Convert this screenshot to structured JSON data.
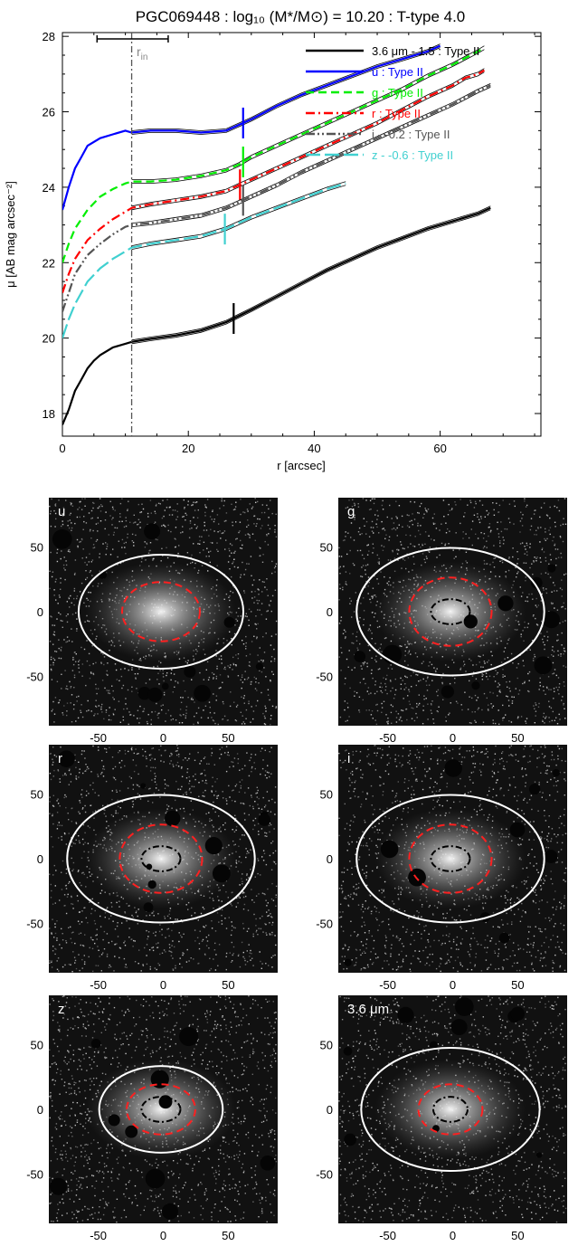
{
  "chart_data": [
    {
      "type": "line",
      "title": "PGC069448 : log₁₀ (M*/M⊙) = 10.20 : T-type 4.0",
      "xlabel": "r [arcsec]",
      "ylabel": "μ [AB mag arcsec⁻²]",
      "xlim": [
        0,
        76
      ],
      "ylim": [
        28.1,
        17.4
      ],
      "y_inverted": true,
      "xticks": [
        "0",
        "20",
        "40",
        "60"
      ],
      "yticks": [
        "18",
        "20",
        "22",
        "24",
        "26",
        "28"
      ],
      "grid": false,
      "legend_position": "top-right",
      "r_in": {
        "label": "r_in",
        "label_main": "r",
        "label_sub": "in",
        "x": 11,
        "err_low": 5.5,
        "err_high": 16.8
      },
      "series": [
        {
          "name": "3.6 μm - 1.5 : Type II",
          "color": "#000000",
          "dash": "solid",
          "x": [
            0,
            1,
            2,
            3,
            4,
            5,
            6,
            8,
            10,
            11,
            14,
            18,
            22,
            26,
            30,
            34,
            38,
            42,
            46,
            50,
            54,
            58,
            62,
            66,
            68
          ],
          "y": [
            17.7,
            18.1,
            18.6,
            18.9,
            19.2,
            19.4,
            19.55,
            19.75,
            19.85,
            19.9,
            19.98,
            20.07,
            20.2,
            20.42,
            20.75,
            21.1,
            21.45,
            21.8,
            22.1,
            22.4,
            22.65,
            22.9,
            23.1,
            23.3,
            23.45
          ],
          "break_r": 27.2
        },
        {
          "name": "u : Type II",
          "color": "#0000ff",
          "dash": "solid",
          "x": [
            0,
            1,
            2,
            3,
            4,
            6,
            8,
            10,
            11,
            14,
            18,
            22,
            26,
            28,
            30,
            34,
            38,
            42,
            46,
            50,
            54,
            58,
            60
          ],
          "y": [
            23.4,
            24.0,
            24.5,
            24.8,
            25.1,
            25.3,
            25.4,
            25.5,
            25.45,
            25.5,
            25.5,
            25.45,
            25.5,
            25.65,
            25.8,
            26.15,
            26.45,
            26.7,
            26.95,
            27.2,
            27.4,
            27.6,
            27.75
          ],
          "break_r": 28.7
        },
        {
          "name": "g : Type II",
          "color": "#00ee00",
          "dash": "dashed",
          "x": [
            0,
            1,
            2,
            4,
            6,
            8,
            10,
            11,
            14,
            18,
            22,
            26,
            28,
            30,
            34,
            38,
            42,
            46,
            50,
            54,
            58,
            62,
            66,
            67
          ],
          "y": [
            22.0,
            22.5,
            22.9,
            23.4,
            23.75,
            23.95,
            24.1,
            24.15,
            24.15,
            24.2,
            24.3,
            24.45,
            24.6,
            24.8,
            25.1,
            25.4,
            25.7,
            26.0,
            26.3,
            26.6,
            26.95,
            27.25,
            27.6,
            27.7
          ],
          "break_r": 28.7
        },
        {
          "name": "r : Type II",
          "color": "#ff0000",
          "dash": "dashdot",
          "x": [
            0,
            1,
            2,
            4,
            6,
            8,
            10,
            11,
            14,
            18,
            22,
            26,
            28,
            30,
            34,
            38,
            42,
            46,
            50,
            54,
            58,
            62,
            64,
            66,
            67
          ],
          "y": [
            21.2,
            21.7,
            22.1,
            22.6,
            22.9,
            23.15,
            23.35,
            23.45,
            23.55,
            23.65,
            23.75,
            23.9,
            24.05,
            24.2,
            24.5,
            24.8,
            25.1,
            25.4,
            25.7,
            26.05,
            26.4,
            26.7,
            26.9,
            27.0,
            27.1
          ],
          "break_r": 28.2
        },
        {
          "name": "i - -0.2 : Type II",
          "color": "#555555",
          "dash": "dashdotdot",
          "x": [
            0,
            1,
            2,
            4,
            6,
            8,
            10,
            11,
            14,
            18,
            22,
            26,
            28,
            30,
            34,
            38,
            42,
            46,
            50,
            54,
            58,
            62,
            66,
            68
          ],
          "y": [
            20.7,
            21.2,
            21.7,
            22.2,
            22.5,
            22.75,
            22.95,
            23.0,
            23.05,
            23.15,
            23.25,
            23.45,
            23.6,
            23.75,
            24.05,
            24.4,
            24.7,
            25.0,
            25.3,
            25.6,
            25.9,
            26.2,
            26.55,
            26.7
          ],
          "break_r": 28.7
        },
        {
          "name": "z - -0.6 : Type II",
          "color": "#40d0d0",
          "dash": "longdash",
          "x": [
            0,
            1,
            2,
            4,
            6,
            8,
            10,
            11,
            14,
            18,
            22,
            26,
            30,
            34,
            38,
            42,
            45
          ],
          "y": [
            20.0,
            20.5,
            20.9,
            21.5,
            21.85,
            22.1,
            22.3,
            22.4,
            22.5,
            22.6,
            22.7,
            22.9,
            23.2,
            23.45,
            23.7,
            23.95,
            24.1
          ],
          "break_r": 25.8
        }
      ]
    },
    {
      "type": "heatmap",
      "panels": [
        {
          "label": "u",
          "xticks": [
            "-50",
            "0",
            "50"
          ],
          "yticks": [
            "50",
            "0",
            "-50"
          ]
        },
        {
          "label": "g",
          "xticks": [
            "-50",
            "0",
            "50"
          ],
          "yticks": [
            "50",
            "0",
            "-50"
          ]
        },
        {
          "label": "r",
          "xticks": [
            "-50",
            "0",
            "50"
          ],
          "yticks": [
            "50",
            "0",
            "-50"
          ]
        },
        {
          "label": "i",
          "xticks": [
            "-50",
            "0",
            "50"
          ],
          "yticks": [
            "50",
            "0",
            "-50"
          ]
        },
        {
          "label": "z",
          "xticks": [
            "-50",
            "0",
            "50"
          ],
          "yticks": [
            "50",
            "0",
            "-50"
          ]
        },
        {
          "label": "3.6 μm",
          "xticks": [
            "-50",
            "0",
            "50"
          ],
          "yticks": [
            "50",
            "0",
            "-50"
          ]
        }
      ],
      "ellipse_colors": {
        "outer": "#ffffff",
        "break": "#ff2020",
        "inner": "#000000"
      }
    }
  ]
}
